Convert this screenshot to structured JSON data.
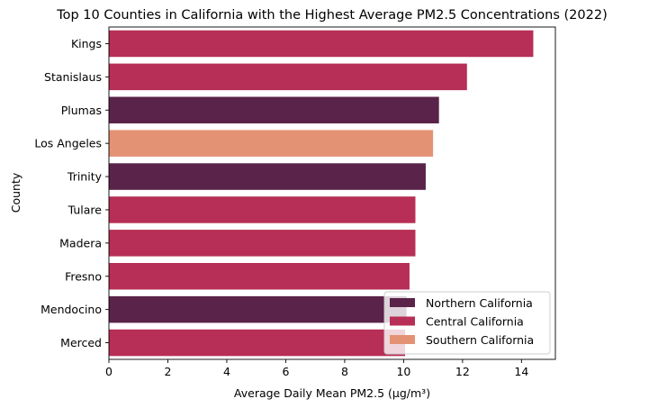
{
  "chart_data": {
    "type": "bar",
    "orientation": "horizontal",
    "title": "Top 10 Counties in California with the Highest Average PM2.5 Concentrations (2022)",
    "xlabel": "Average Daily Mean PM2.5 (µg/m³)",
    "ylabel": "County",
    "xlim": [
      0,
      15.15
    ],
    "xticks": [
      0,
      2,
      4,
      6,
      8,
      10,
      12,
      14
    ],
    "grid": false,
    "legend_position": "bottom-right",
    "categories": [
      "Kings",
      "Stanislaus",
      "Plumas",
      "Los Angeles",
      "Trinity",
      "Tulare",
      "Madera",
      "Fresno",
      "Mendocino",
      "Merced"
    ],
    "values": [
      14.4,
      12.15,
      11.2,
      11.0,
      10.75,
      10.4,
      10.4,
      10.2,
      10.1,
      10.05
    ],
    "groups": [
      "Central California",
      "Central California",
      "Northern California",
      "Southern California",
      "Northern California",
      "Central California",
      "Central California",
      "Central California",
      "Northern California",
      "Central California"
    ],
    "legend": [
      {
        "name": "Northern California",
        "color": "#5a2349"
      },
      {
        "name": "Central California",
        "color": "#b72f56"
      },
      {
        "name": "Southern California",
        "color": "#e39374"
      }
    ]
  }
}
